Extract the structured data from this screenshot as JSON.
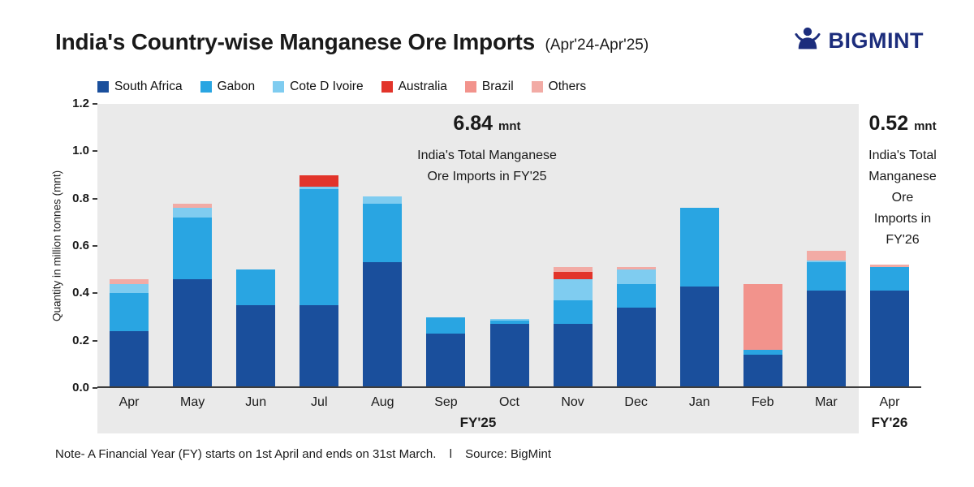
{
  "header": {
    "title": "India's Country-wise Manganese Ore Imports",
    "period": "(Apr'24-Apr'25)",
    "brand": "BIGMINT"
  },
  "annotations": {
    "center": {
      "value": "6.84",
      "unit": "mnt",
      "line1": "India's Total Manganese",
      "line2": "Ore Imports in FY'25"
    },
    "right": {
      "value": "0.52",
      "unit": "mnt",
      "line1": "India's Total",
      "line2": "Manganese Ore",
      "line3": "Imports in FY'26"
    }
  },
  "footer": {
    "note": "Note- A Financial Year (FY) starts on 1st April and ends on 31st March.",
    "separator": "l",
    "source": "Source: BigMint"
  },
  "chart_data": {
    "type": "bar",
    "stacked": true,
    "title": "India's Country-wise Manganese Ore Imports (Apr'24-Apr'25)",
    "xlabel": "",
    "ylabel": "Quantity in million tonnes (mnt)",
    "ylim": [
      0,
      1.2
    ],
    "ytick_step": 0.2,
    "grid": false,
    "legend_position": "top-left",
    "categories": [
      "Apr",
      "May",
      "Jun",
      "Jul",
      "Aug",
      "Sep",
      "Oct",
      "Nov",
      "Dec",
      "Jan",
      "Feb",
      "Mar",
      "Apr"
    ],
    "group_labels": [
      {
        "label": "FY'25",
        "span": [
          0,
          11
        ]
      },
      {
        "label": "FY'26",
        "span": [
          12,
          12
        ]
      }
    ],
    "series": [
      {
        "name": "South Africa",
        "color": "#1a4f9c",
        "values": [
          0.24,
          0.46,
          0.35,
          0.35,
          0.53,
          0.23,
          0.27,
          0.27,
          0.34,
          0.43,
          0.14,
          0.41,
          0.41
        ]
      },
      {
        "name": "Gabon",
        "color": "#29a5e2",
        "values": [
          0.16,
          0.26,
          0.15,
          0.49,
          0.25,
          0.07,
          0.015,
          0.1,
          0.1,
          0.33,
          0.02,
          0.12,
          0.1
        ]
      },
      {
        "name": "Cote D Ivoire",
        "color": "#7fccf0",
        "values": [
          0.04,
          0.04,
          0,
          0.01,
          0.03,
          0,
          0.005,
          0.09,
          0.06,
          0,
          0,
          0.01,
          0
        ]
      },
      {
        "name": "Australia",
        "color": "#e2342a",
        "values": [
          0,
          0,
          0,
          0.05,
          0,
          0,
          0,
          0.03,
          0,
          0,
          0,
          0,
          0
        ]
      },
      {
        "name": "Brazil",
        "color": "#f2938c",
        "values": [
          0,
          0,
          0,
          0,
          0,
          0,
          0,
          0,
          0,
          0,
          0.28,
          0,
          0
        ]
      },
      {
        "name": "Others",
        "color": "#f2aba5",
        "values": [
          0.02,
          0.02,
          0,
          0,
          0,
          0,
          0,
          0.02,
          0.01,
          0,
          0,
          0.04,
          0.01
        ]
      }
    ],
    "totals": [
      0.46,
      0.78,
      0.5,
      0.9,
      0.81,
      0.3,
      0.29,
      0.51,
      0.51,
      0.76,
      0.44,
      0.58,
      0.52
    ]
  },
  "colors": {
    "background": "#ffffff",
    "panel": "#eaeaea",
    "axis": "#3d3d3d",
    "brand": "#1c2d7c"
  }
}
